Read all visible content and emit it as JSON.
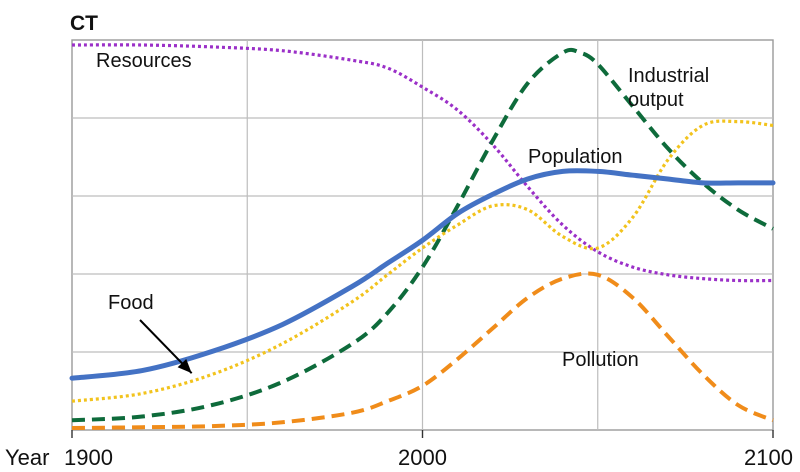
{
  "chart_data": {
    "type": "line",
    "title": "CT",
    "x_axis": {
      "label": "Year",
      "ticks": [
        "1900",
        "2000",
        "2100"
      ],
      "range": [
        1900,
        2100
      ]
    },
    "y_axis": {
      "range": [
        0,
        1
      ],
      "tick_labels": [],
      "grid_lines": 4
    },
    "grid": true,
    "annotations": [
      {
        "text": "Food",
        "points_to_series": "Food",
        "at_x": 1935
      }
    ],
    "series": [
      {
        "name": "Resources",
        "style": "dotted",
        "color": "#9b30c8",
        "label_lines": [
          "Resources"
        ],
        "x": [
          1900,
          1920,
          1940,
          1960,
          1980,
          1990,
          2000,
          2010,
          2020,
          2030,
          2040,
          2050,
          2060,
          2070,
          2080,
          2090,
          2100
        ],
        "y": [
          1.0,
          1.0,
          0.995,
          0.985,
          0.96,
          0.94,
          0.89,
          0.83,
          0.74,
          0.63,
          0.53,
          0.46,
          0.42,
          0.4,
          0.39,
          0.385,
          0.385
        ]
      },
      {
        "name": "Industrial output",
        "style": "dashed",
        "color": "#0e6b3b",
        "label_lines": [
          "Industrial",
          "output"
        ],
        "x": [
          1900,
          1920,
          1940,
          1960,
          1980,
          1990,
          2000,
          2010,
          2020,
          2030,
          2040,
          2045,
          2050,
          2060,
          2070,
          2080,
          2090,
          2100
        ],
        "y": [
          0.02,
          0.03,
          0.06,
          0.12,
          0.22,
          0.3,
          0.42,
          0.58,
          0.75,
          0.9,
          0.98,
          0.98,
          0.95,
          0.84,
          0.73,
          0.64,
          0.57,
          0.52
        ]
      },
      {
        "name": "Population",
        "style": "solid",
        "color": "#4472c4",
        "label_lines": [
          "Population"
        ],
        "x": [
          1900,
          1920,
          1940,
          1960,
          1980,
          1990,
          2000,
          2010,
          2020,
          2030,
          2040,
          2050,
          2060,
          2070,
          2080,
          2090,
          2100
        ],
        "y": [
          0.13,
          0.15,
          0.2,
          0.27,
          0.37,
          0.43,
          0.49,
          0.56,
          0.61,
          0.65,
          0.67,
          0.67,
          0.66,
          0.65,
          0.64,
          0.64,
          0.64
        ]
      },
      {
        "name": "Food",
        "style": "dotted",
        "color": "#f2c31d",
        "label_lines": [
          "Food"
        ],
        "x": [
          1900,
          1920,
          1940,
          1960,
          1980,
          1990,
          2000,
          2010,
          2020,
          2030,
          2040,
          2050,
          2060,
          2070,
          2080,
          2090,
          2100
        ],
        "y": [
          0.07,
          0.09,
          0.14,
          0.22,
          0.33,
          0.4,
          0.47,
          0.53,
          0.58,
          0.57,
          0.5,
          0.47,
          0.55,
          0.7,
          0.79,
          0.8,
          0.79
        ]
      },
      {
        "name": "Pollution",
        "style": "dashed",
        "color": "#f08c1a",
        "label_lines": [
          "Pollution"
        ],
        "x": [
          1900,
          1920,
          1940,
          1960,
          1980,
          1990,
          2000,
          2010,
          2020,
          2030,
          2040,
          2050,
          2060,
          2070,
          2080,
          2090,
          2100
        ],
        "y": [
          0.0,
          0.002,
          0.005,
          0.015,
          0.04,
          0.07,
          0.11,
          0.18,
          0.26,
          0.34,
          0.39,
          0.4,
          0.34,
          0.24,
          0.14,
          0.06,
          0.02
        ]
      }
    ]
  }
}
